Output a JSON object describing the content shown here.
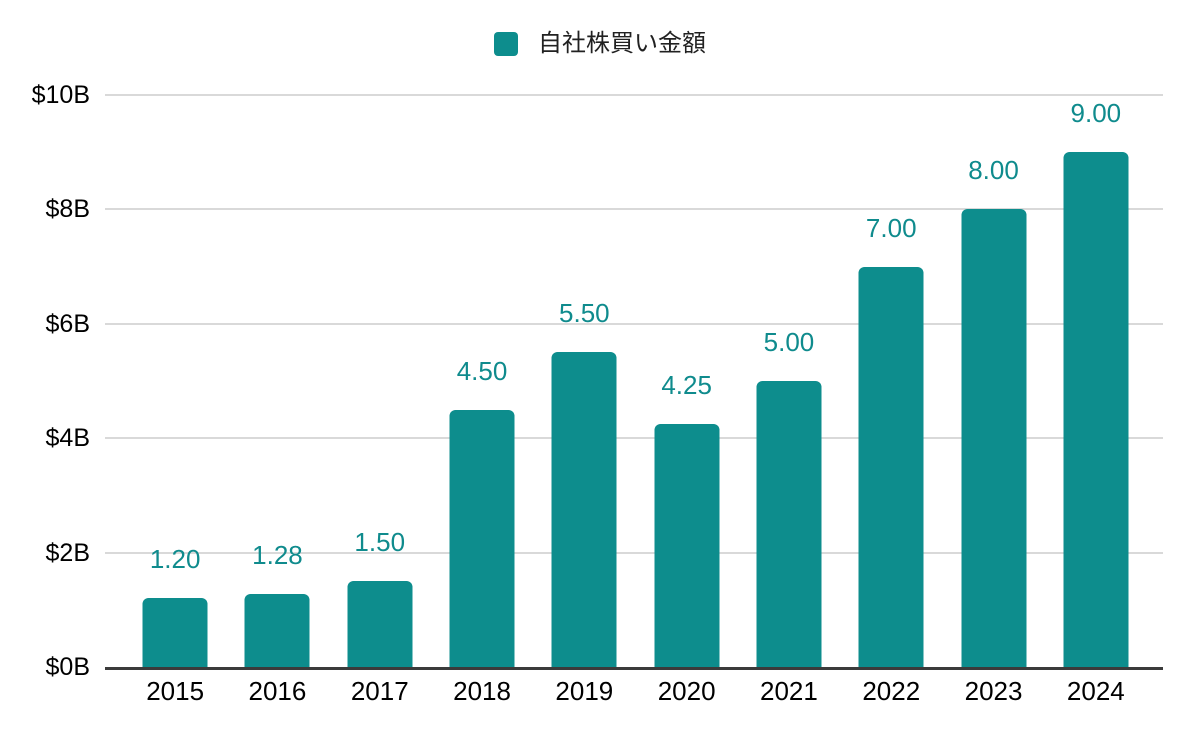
{
  "chart_data": {
    "type": "bar",
    "title": "",
    "legend": {
      "label": "自社株買い金額",
      "position": "top"
    },
    "categories": [
      "2015",
      "2016",
      "2017",
      "2018",
      "2019",
      "2020",
      "2021",
      "2022",
      "2023",
      "2024"
    ],
    "values": [
      1.2,
      1.28,
      1.5,
      4.5,
      5.5,
      4.25,
      5.0,
      7.0,
      8.0,
      9.0
    ],
    "value_labels": [
      "1.20",
      "1.28",
      "1.50",
      "4.50",
      "5.50",
      "4.25",
      "5.00",
      "7.00",
      "8.00",
      "9.00"
    ],
    "xlabel": "",
    "ylabel": "",
    "ylim": [
      0,
      10
    ],
    "y_ticks": [
      {
        "value": 0,
        "label": "$0B"
      },
      {
        "value": 2,
        "label": "$2B"
      },
      {
        "value": 4,
        "label": "$4B"
      },
      {
        "value": 6,
        "label": "$6B"
      },
      {
        "value": 8,
        "label": "$8B"
      },
      {
        "value": 10,
        "label": "$10B"
      }
    ],
    "grid": true
  },
  "colors": {
    "bar": "#0d8d8d",
    "value_label": "#0f8b8d",
    "grid_line": "#d9d9d9",
    "axis_line": "#3b3b3b",
    "tick_label": "#000000",
    "legend_text": "#212121",
    "background": "#ffffff"
  }
}
